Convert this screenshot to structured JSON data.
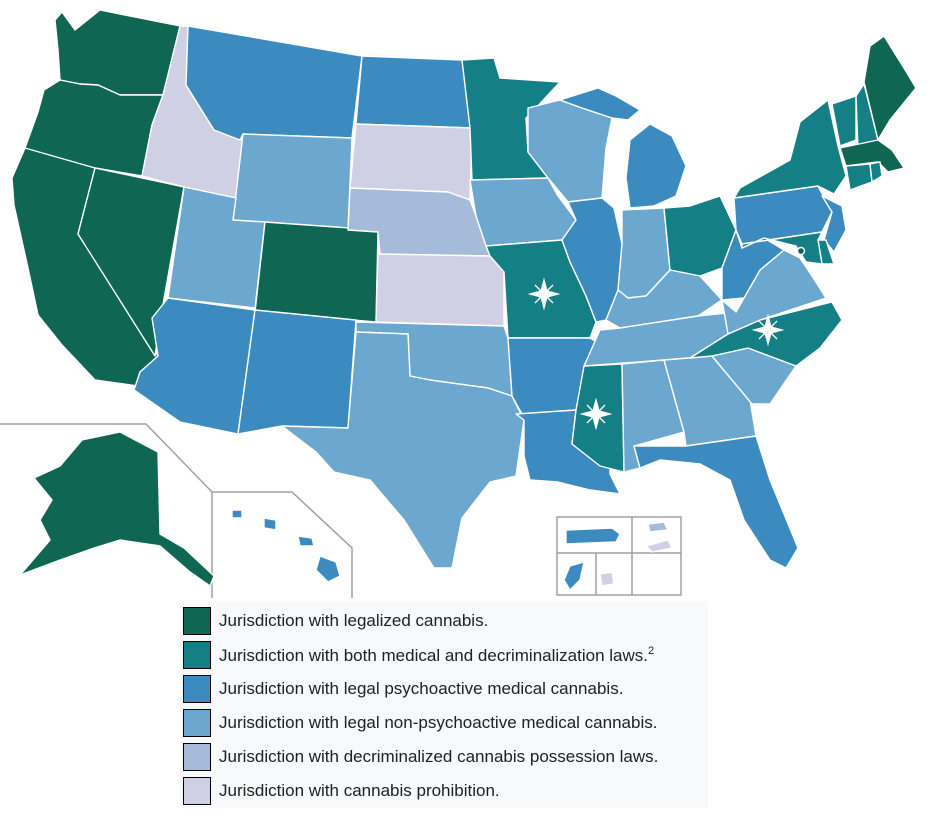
{
  "colors": {
    "legalized": "#0e6653",
    "medical_decrim": "#148085",
    "psychoactive_medical": "#3b8bc0",
    "nonpsychoactive_medical": "#6ba7ce",
    "decriminalized": "#a6bbd9",
    "prohibition": "#d0d0e4"
  },
  "markers": {
    "star_symbol": "star-icon",
    "star_color": "#ffffff"
  },
  "legend": {
    "items": [
      {
        "color_key": "legalized",
        "label": "Jurisdiction with legalized cannabis.",
        "sup": ""
      },
      {
        "color_key": "medical_decrim",
        "label": "Jurisdiction with both medical and decriminalization laws.",
        "sup": "2"
      },
      {
        "color_key": "psychoactive_medical",
        "label": "Jurisdiction with legal psychoactive medical cannabis.",
        "sup": ""
      },
      {
        "color_key": "nonpsychoactive_medical",
        "label": "Jurisdiction with legal non-psychoactive medical cannabis.",
        "sup": ""
      },
      {
        "color_key": "decriminalized",
        "label": "Jurisdiction with decriminalized cannabis possession laws.",
        "sup": ""
      },
      {
        "color_key": "prohibition",
        "label": "Jurisdiction with cannabis prohibition.",
        "sup": ""
      }
    ]
  },
  "states": {
    "WA": "legalized",
    "OR": "legalized",
    "CA": "legalized",
    "NV": "legalized",
    "CO": "legalized",
    "AK": "legalized",
    "ME": "legalized",
    "MA": "legalized",
    "DC": "legalized",
    "MN": "medical_decrim",
    "MO": "medical_decrim",
    "MS": "medical_decrim",
    "NC": "medical_decrim",
    "OH": "medical_decrim",
    "NY": "medical_decrim",
    "VT": "medical_decrim",
    "NH": "medical_decrim",
    "CT": "medical_decrim",
    "RI": "medical_decrim",
    "MD": "medical_decrim",
    "DE": "medical_decrim",
    "MT": "psychoactive_medical",
    "ND": "psychoactive_medical",
    "AZ": "psychoactive_medical",
    "NM": "psychoactive_medical",
    "AR": "psychoactive_medical",
    "LA": "psychoactive_medical",
    "IL": "psychoactive_medical",
    "MI": "psychoactive_medical",
    "FL": "psychoactive_medical",
    "PA": "psychoactive_medical",
    "NJ": "psychoactive_medical",
    "WV": "psychoactive_medical",
    "HI": "psychoactive_medical",
    "PR": "psychoactive_medical",
    "GU": "psychoactive_medical",
    "WY": "nonpsychoactive_medical",
    "UT": "nonpsychoactive_medical",
    "TX": "nonpsychoactive_medical",
    "OK": "nonpsychoactive_medical",
    "IA": "nonpsychoactive_medical",
    "WI": "nonpsychoactive_medical",
    "IN": "nonpsychoactive_medical",
    "KY": "nonpsychoactive_medical",
    "TN": "nonpsychoactive_medical",
    "AL": "nonpsychoactive_medical",
    "GA": "nonpsychoactive_medical",
    "SC": "nonpsychoactive_medical",
    "VA": "nonpsychoactive_medical",
    "NE": "decriminalized",
    "VI": "decriminalized",
    "ID": "prohibition",
    "SD": "prohibition",
    "KS": "prohibition",
    "MP": "prohibition",
    "AS": "prohibition"
  }
}
